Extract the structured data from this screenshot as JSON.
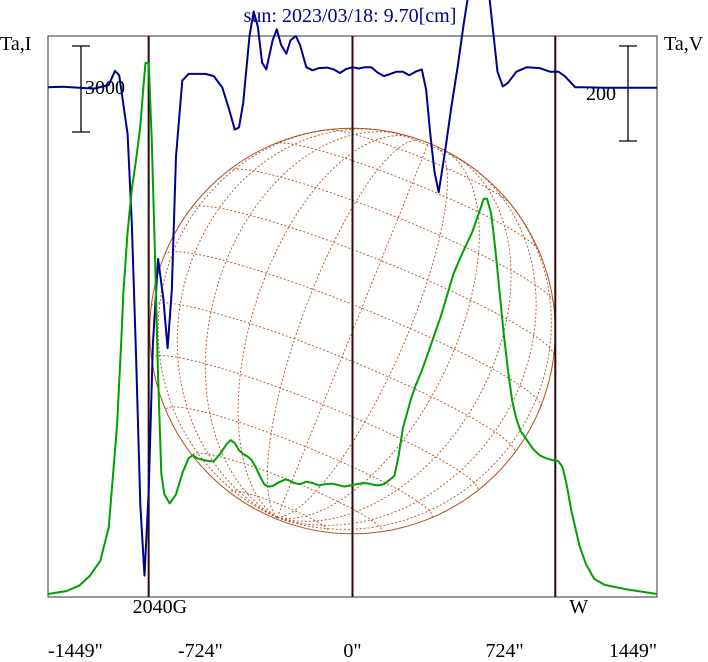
{
  "chart_data": {
    "type": "line",
    "title": "sun: 2023/03/18: 9.70[cm]",
    "left_axis_label": "Ta,I",
    "right_axis_label": "Ta,V",
    "left_scale_bar": {
      "label": "3000",
      "value": 3000
    },
    "right_scale_bar": {
      "label": "200",
      "value": 200
    },
    "xlim": [
      -1449,
      1449
    ],
    "x_ticks": [
      {
        "value": -1449,
        "label": "-1449\""
      },
      {
        "value": -724,
        "label": "-724\""
      },
      {
        "value": 0,
        "label": "0\""
      },
      {
        "value": 724,
        "label": "724\""
      },
      {
        "value": 1449,
        "label": "1449\""
      }
    ],
    "markers": [
      {
        "x": -970,
        "label": "2040G"
      },
      {
        "x": 0,
        "label": ""
      },
      {
        "x": 965,
        "label": "W"
      }
    ],
    "disk": {
      "center_x": 0,
      "radius_arcsec": 965
    },
    "colors": {
      "stokes_I": "#00008b",
      "stokes_V": "#00a000",
      "grid": "#b05020",
      "markers": "#2a0a0a"
    },
    "series": [
      {
        "key": "stokes_I",
        "points": [
          [
            -1449,
            2550
          ],
          [
            -1380,
            2560
          ],
          [
            -1300,
            2540
          ],
          [
            -1230,
            2520
          ],
          [
            -1160,
            2600
          ],
          [
            -1130,
            2920
          ],
          [
            -1110,
            2820
          ],
          [
            -1070,
            1500
          ],
          [
            -1050,
            -500
          ],
          [
            -1030,
            -3500
          ],
          [
            -1010,
            -6800
          ],
          [
            -990,
            -8400
          ],
          [
            -970,
            -6500
          ],
          [
            -950,
            -3200
          ],
          [
            -925,
            -1300
          ],
          [
            -900,
            -2200
          ],
          [
            -880,
            -3300
          ],
          [
            -860,
            -2000
          ],
          [
            -840,
            1000
          ],
          [
            -810,
            2700
          ],
          [
            -780,
            2850
          ],
          [
            -740,
            2850
          ],
          [
            -700,
            2850
          ],
          [
            -660,
            2800
          ],
          [
            -620,
            2550
          ],
          [
            -590,
            2100
          ],
          [
            -560,
            1600
          ],
          [
            -540,
            1650
          ],
          [
            -520,
            2200
          ],
          [
            -490,
            3700
          ],
          [
            -470,
            4250
          ],
          [
            -450,
            3900
          ],
          [
            -430,
            3100
          ],
          [
            -410,
            2950
          ],
          [
            -380,
            3600
          ],
          [
            -360,
            3850
          ],
          [
            -340,
            3500
          ],
          [
            -315,
            3300
          ],
          [
            -295,
            3600
          ],
          [
            -270,
            3700
          ],
          [
            -250,
            3500
          ],
          [
            -220,
            3000
          ],
          [
            -190,
            2930
          ],
          [
            -160,
            2980
          ],
          [
            -120,
            2990
          ],
          [
            -90,
            2950
          ],
          [
            -60,
            2870
          ],
          [
            -30,
            2960
          ],
          [
            0,
            3000
          ],
          [
            30,
            2970
          ],
          [
            60,
            3000
          ],
          [
            90,
            3000
          ],
          [
            120,
            2880
          ],
          [
            150,
            2800
          ],
          [
            180,
            2850
          ],
          [
            210,
            2900
          ],
          [
            240,
            2900
          ],
          [
            270,
            2820
          ],
          [
            300,
            2900
          ],
          [
            330,
            2950
          ],
          [
            350,
            2500
          ],
          [
            370,
            1500
          ],
          [
            390,
            650
          ],
          [
            410,
            200
          ],
          [
            440,
            1100
          ],
          [
            470,
            2100
          ],
          [
            500,
            3000
          ],
          [
            530,
            4000
          ],
          [
            560,
            4900
          ],
          [
            590,
            5550
          ],
          [
            610,
            5750
          ],
          [
            635,
            5300
          ],
          [
            660,
            4200
          ],
          [
            690,
            2900
          ],
          [
            715,
            2570
          ],
          [
            740,
            2650
          ],
          [
            780,
            2900
          ],
          [
            830,
            3000
          ],
          [
            890,
            2980
          ],
          [
            940,
            2900
          ],
          [
            980,
            2900
          ],
          [
            1010,
            2800
          ],
          [
            1060,
            2550
          ],
          [
            1100,
            2550
          ],
          [
            1200,
            2540
          ],
          [
            1300,
            2540
          ],
          [
            1449,
            2540
          ]
        ]
      },
      {
        "key": "stokes_V",
        "points": [
          [
            -1449,
            0
          ],
          [
            -1360,
            5
          ],
          [
            -1300,
            14
          ],
          [
            -1250,
            30
          ],
          [
            -1200,
            55
          ],
          [
            -1160,
            110
          ],
          [
            -1120,
            280
          ],
          [
            -1100,
            420
          ],
          [
            -1090,
            500
          ],
          [
            -1070,
            600
          ],
          [
            -1050,
            670
          ],
          [
            -1030,
            720
          ],
          [
            -1010,
            775
          ],
          [
            -995,
            840
          ],
          [
            -985,
            880
          ],
          [
            -970,
            880
          ],
          [
            -955,
            750
          ],
          [
            -940,
            560
          ],
          [
            -925,
            360
          ],
          [
            -910,
            200
          ],
          [
            -895,
            165
          ],
          [
            -870,
            150
          ],
          [
            -840,
            165
          ],
          [
            -810,
            200
          ],
          [
            -780,
            225
          ],
          [
            -760,
            230
          ],
          [
            -740,
            225
          ],
          [
            -710,
            222
          ],
          [
            -680,
            220
          ],
          [
            -660,
            220
          ],
          [
            -630,
            232
          ],
          [
            -600,
            248
          ],
          [
            -580,
            255
          ],
          [
            -560,
            250
          ],
          [
            -540,
            238
          ],
          [
            -520,
            232
          ],
          [
            -500,
            228
          ],
          [
            -480,
            222
          ],
          [
            -460,
            210
          ],
          [
            -440,
            195
          ],
          [
            -420,
            182
          ],
          [
            -400,
            178
          ],
          [
            -380,
            179
          ],
          [
            -350,
            185
          ],
          [
            -320,
            190
          ],
          [
            -300,
            188
          ],
          [
            -280,
            184
          ],
          [
            -250,
            182
          ],
          [
            -220,
            186
          ],
          [
            -190,
            184
          ],
          [
            -160,
            180
          ],
          [
            -130,
            182
          ],
          [
            -100,
            183
          ],
          [
            -70,
            181
          ],
          [
            -40,
            178
          ],
          [
            -10,
            180
          ],
          [
            20,
            182
          ],
          [
            50,
            184
          ],
          [
            80,
            183
          ],
          [
            100,
            181
          ],
          [
            120,
            180
          ],
          [
            150,
            182
          ],
          [
            180,
            190
          ],
          [
            200,
            196
          ],
          [
            220,
            230
          ],
          [
            240,
            275
          ],
          [
            260,
            300
          ],
          [
            280,
            325
          ],
          [
            300,
            345
          ],
          [
            330,
            370
          ],
          [
            360,
            400
          ],
          [
            390,
            430
          ],
          [
            420,
            460
          ],
          [
            450,
            495
          ],
          [
            480,
            530
          ],
          [
            510,
            555
          ],
          [
            530,
            570
          ],
          [
            550,
            585
          ],
          [
            570,
            600
          ],
          [
            590,
            620
          ],
          [
            610,
            640
          ],
          [
            625,
            655
          ],
          [
            640,
            655
          ],
          [
            660,
            630
          ],
          [
            680,
            570
          ],
          [
            700,
            500
          ],
          [
            720,
            430
          ],
          [
            740,
            370
          ],
          [
            760,
            320
          ],
          [
            780,
            290
          ],
          [
            800,
            270
          ],
          [
            830,
            255
          ],
          [
            860,
            240
          ],
          [
            890,
            230
          ],
          [
            920,
            225
          ],
          [
            950,
            222
          ],
          [
            980,
            220
          ],
          [
            1000,
            210
          ],
          [
            1020,
            180
          ],
          [
            1040,
            140
          ],
          [
            1060,
            110
          ],
          [
            1080,
            80
          ],
          [
            1110,
            50
          ],
          [
            1150,
            25
          ],
          [
            1200,
            15
          ],
          [
            1300,
            8
          ],
          [
            1449,
            0
          ]
        ]
      }
    ]
  }
}
